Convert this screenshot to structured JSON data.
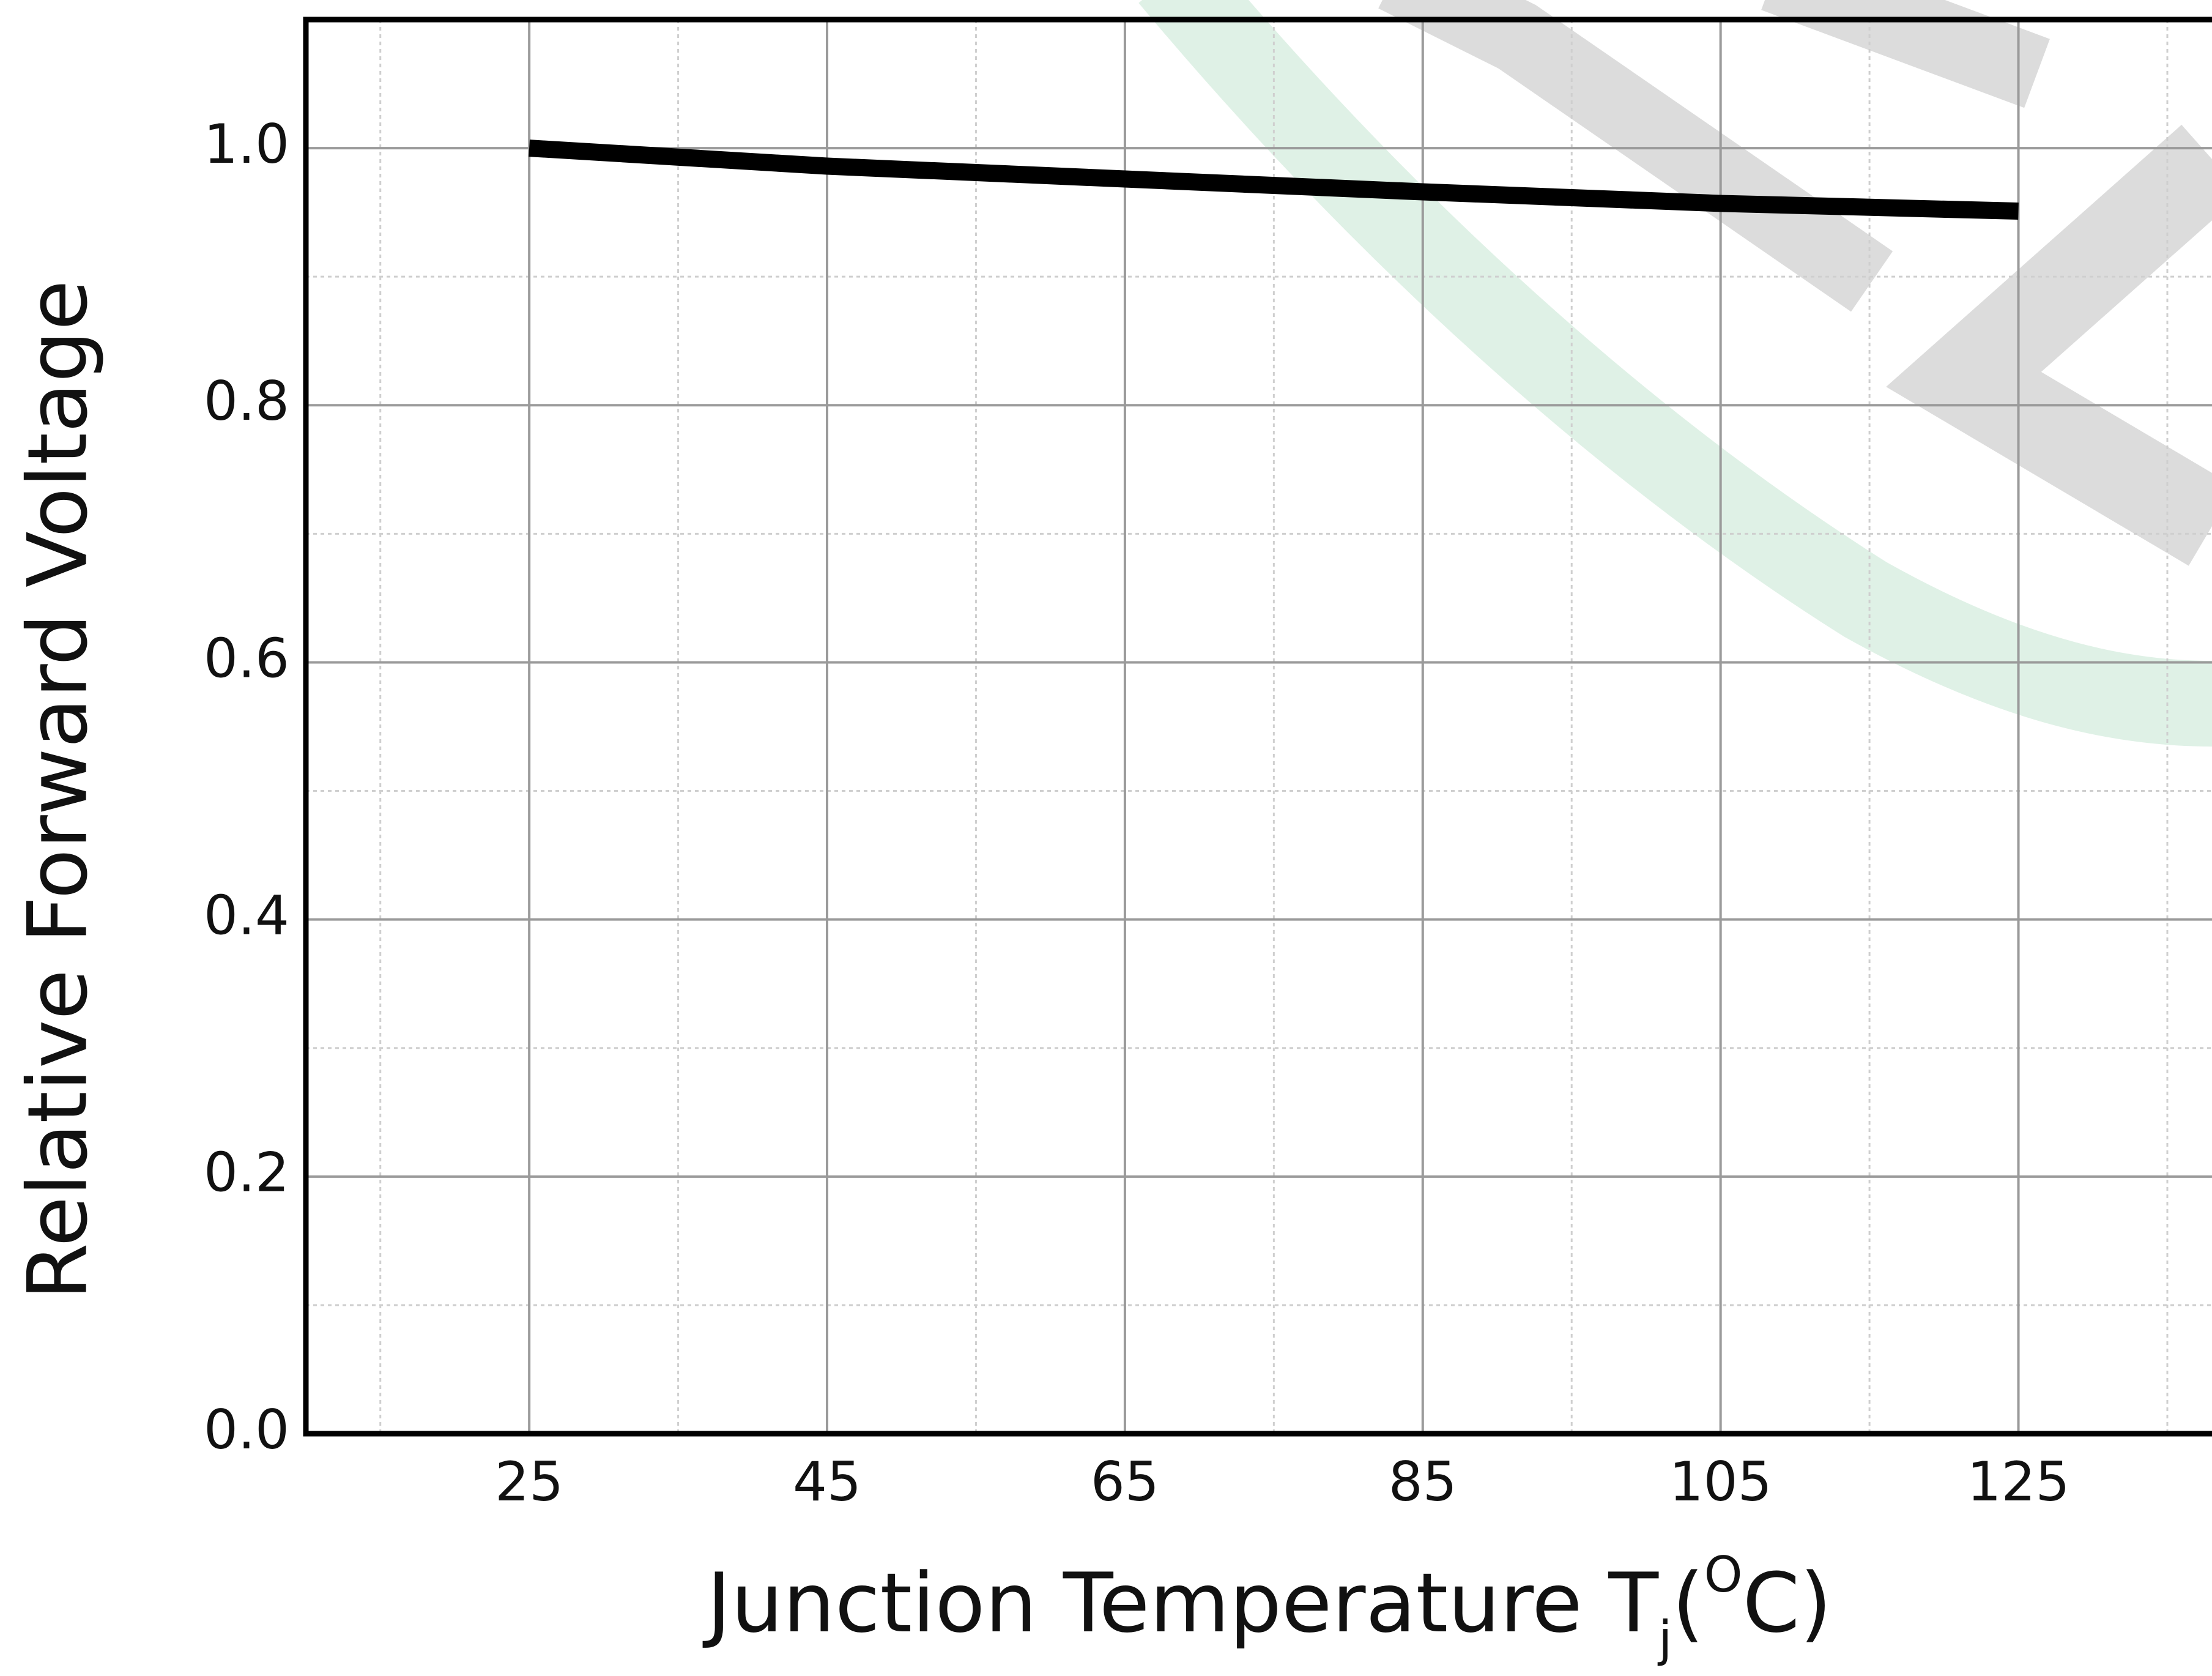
{
  "chart_data": {
    "type": "line",
    "ylabel": "Relative Forward Voltage",
    "xlabel": {
      "text": "Junction Temperature T",
      "subscript": "j",
      "unit_open": "(",
      "unit_degree": "O",
      "unit_close": "C)"
    },
    "x": [
      25,
      45,
      65,
      85,
      105,
      125
    ],
    "values": [
      1.0,
      0.986,
      0.976,
      0.966,
      0.957,
      0.951
    ],
    "color": "#000000",
    "xlim": [
      10,
      138
    ],
    "ylim": [
      0,
      1.1
    ],
    "xticks": [
      25,
      45,
      65,
      85,
      105,
      125
    ],
    "yticks": [
      {
        "value": 0,
        "label": "0.0"
      },
      0.2,
      0.4,
      0.6,
      0.8,
      {
        "value": 1,
        "label": "1.0"
      }
    ],
    "x_minor_ticks": [
      15,
      35,
      55,
      75,
      95,
      115,
      135
    ],
    "y_minor_ticks": [
      0.1,
      0.3,
      0.5,
      0.7,
      0.9
    ],
    "grid": true
  }
}
